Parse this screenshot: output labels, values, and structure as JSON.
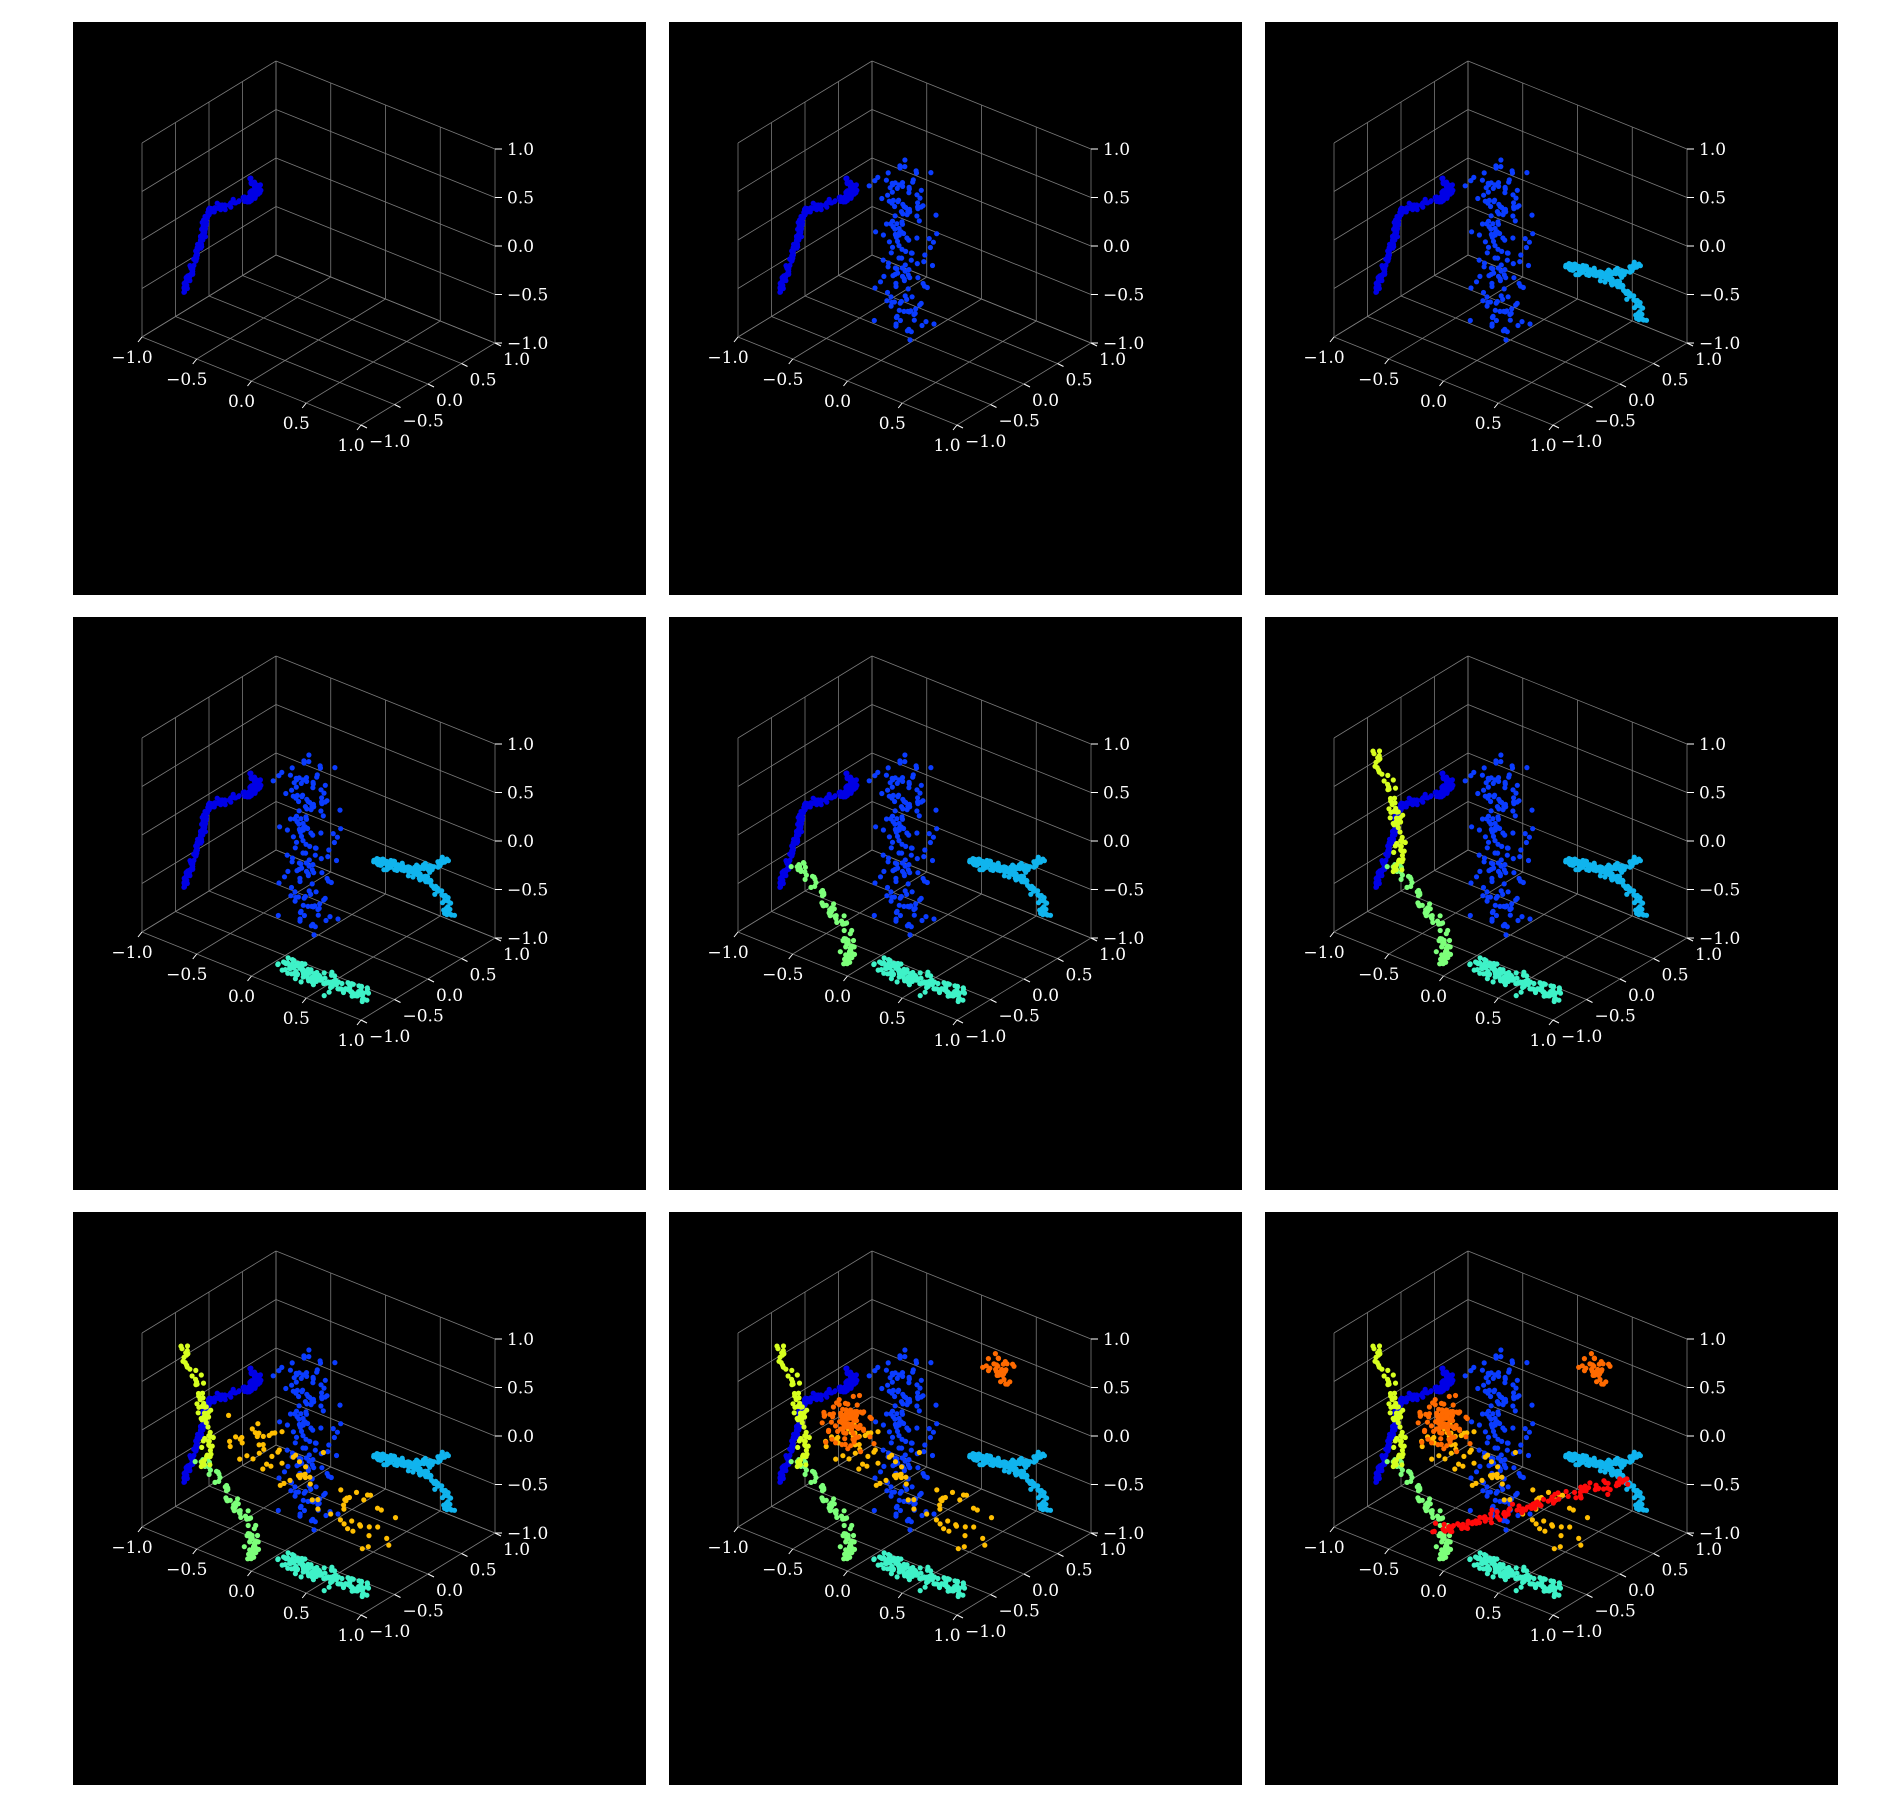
{
  "figure": {
    "background": "#000000",
    "grid_color": "#7a7a7a",
    "tick_color": "#ffffff",
    "colormap": "jet"
  },
  "axes": {
    "x_ticks": [
      "−1.0",
      "−0.5",
      "0.0",
      "0.5",
      "1.0"
    ],
    "y_ticks": [
      "−1.0",
      "−0.5",
      "0.0",
      "0.5",
      "1.0"
    ],
    "z_ticks": [
      "−1.0",
      "−0.5",
      "0.0",
      "0.5",
      "1.0"
    ]
  },
  "chart_data": [
    {
      "type": "scatter",
      "projection": "3d",
      "xlim": [
        -1,
        1
      ],
      "ylim": [
        -1,
        1
      ],
      "zlim": [
        -1,
        1
      ],
      "grid": true,
      "groups": [
        {
          "name": "",
          "color": "#0000e6"
        }
      ]
    },
    {
      "type": "scatter",
      "projection": "3d",
      "xlim": [
        -1,
        1
      ],
      "ylim": [
        -1,
        1
      ],
      "zlim": [
        -1,
        1
      ],
      "grid": true,
      "groups": [
        {
          "name": "",
          "color": "#0000e6"
        },
        {
          "name": "",
          "color": "#0a3cff"
        }
      ]
    },
    {
      "type": "scatter",
      "projection": "3d",
      "xlim": [
        -1,
        1
      ],
      "ylim": [
        -1,
        1
      ],
      "zlim": [
        -1,
        1
      ],
      "grid": true,
      "groups": [
        {
          "name": "",
          "color": "#0000e6"
        },
        {
          "name": "",
          "color": "#0a3cff"
        },
        {
          "name": "",
          "color": "#10b4ee"
        }
      ]
    },
    {
      "type": "scatter",
      "projection": "3d",
      "xlim": [
        -1,
        1
      ],
      "ylim": [
        -1,
        1
      ],
      "zlim": [
        -1,
        1
      ],
      "grid": true,
      "groups": [
        {
          "name": "",
          "color": "#0000e6"
        },
        {
          "name": "",
          "color": "#0a3cff"
        },
        {
          "name": "",
          "color": "#10b4ee"
        },
        {
          "name": "",
          "color": "#3ff2c8"
        }
      ]
    },
    {
      "type": "scatter",
      "projection": "3d",
      "xlim": [
        -1,
        1
      ],
      "ylim": [
        -1,
        1
      ],
      "zlim": [
        -1,
        1
      ],
      "grid": true,
      "groups": [
        {
          "name": "",
          "color": "#0000e6"
        },
        {
          "name": "",
          "color": "#0a3cff"
        },
        {
          "name": "",
          "color": "#10b4ee"
        },
        {
          "name": "",
          "color": "#3ff2c8"
        },
        {
          "name": "",
          "color": "#7dff7a"
        }
      ]
    },
    {
      "type": "scatter",
      "projection": "3d",
      "xlim": [
        -1,
        1
      ],
      "ylim": [
        -1,
        1
      ],
      "zlim": [
        -1,
        1
      ],
      "grid": true,
      "groups": [
        {
          "name": "",
          "color": "#0000e6"
        },
        {
          "name": "",
          "color": "#0a3cff"
        },
        {
          "name": "",
          "color": "#10b4ee"
        },
        {
          "name": "",
          "color": "#3ff2c8"
        },
        {
          "name": "",
          "color": "#7dff7a"
        },
        {
          "name": "",
          "color": "#d7ff1f"
        }
      ]
    },
    {
      "type": "scatter",
      "projection": "3d",
      "xlim": [
        -1,
        1
      ],
      "ylim": [
        -1,
        1
      ],
      "zlim": [
        -1,
        1
      ],
      "grid": true,
      "groups": [
        {
          "name": "",
          "color": "#0000e6"
        },
        {
          "name": "",
          "color": "#0a3cff"
        },
        {
          "name": "",
          "color": "#10b4ee"
        },
        {
          "name": "",
          "color": "#3ff2c8"
        },
        {
          "name": "",
          "color": "#7dff7a"
        },
        {
          "name": "",
          "color": "#d7ff1f"
        },
        {
          "name": "",
          "color": "#ffbe00"
        }
      ]
    },
    {
      "type": "scatter",
      "projection": "3d",
      "xlim": [
        -1,
        1
      ],
      "ylim": [
        -1,
        1
      ],
      "zlim": [
        -1,
        1
      ],
      "grid": true,
      "groups": [
        {
          "name": "",
          "color": "#0000e6"
        },
        {
          "name": "",
          "color": "#0a3cff"
        },
        {
          "name": "",
          "color": "#10b4ee"
        },
        {
          "name": "",
          "color": "#3ff2c8"
        },
        {
          "name": "",
          "color": "#7dff7a"
        },
        {
          "name": "",
          "color": "#d7ff1f"
        },
        {
          "name": "",
          "color": "#ffbe00"
        },
        {
          "name": "",
          "color": "#ff6a00"
        }
      ]
    },
    {
      "type": "scatter",
      "projection": "3d",
      "xlim": [
        -1,
        1
      ],
      "ylim": [
        -1,
        1
      ],
      "zlim": [
        -1,
        1
      ],
      "grid": true,
      "groups": [
        {
          "name": "",
          "color": "#0000e6"
        },
        {
          "name": "",
          "color": "#0a3cff"
        },
        {
          "name": "",
          "color": "#10b4ee"
        },
        {
          "name": "",
          "color": "#3ff2c8"
        },
        {
          "name": "",
          "color": "#7dff7a"
        },
        {
          "name": "",
          "color": "#d7ff1f"
        },
        {
          "name": "",
          "color": "#ffbe00"
        },
        {
          "name": "",
          "color": "#ff6a00"
        },
        {
          "name": "",
          "color": "#ff0a0a"
        }
      ]
    }
  ]
}
